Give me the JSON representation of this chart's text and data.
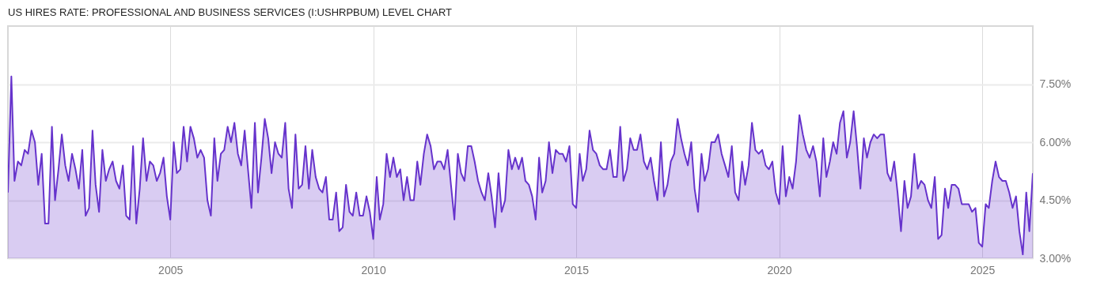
{
  "chart_data": {
    "type": "area",
    "title": "US HIRES RATE: PROFESSIONAL AND BUSINESS SERVICES (I:USHRPBUM) LEVEL CHART",
    "xlim": [
      "2001-01",
      "2026-04"
    ],
    "xticks": [
      "2005",
      "2010",
      "2015",
      "2020",
      "2025"
    ],
    "ylim": [
      3,
      9
    ],
    "yticks": [
      {
        "value": 3,
        "label": "3.00%"
      },
      {
        "value": 4.5,
        "label": "4.50%"
      },
      {
        "value": 6,
        "label": "6.00%"
      },
      {
        "value": 7.5,
        "label": "7.50%"
      }
    ],
    "grid": true,
    "x": [
      "2001-01",
      "2001-02",
      "2001-03",
      "2001-04",
      "2001-05",
      "2001-06",
      "2001-07",
      "2001-08",
      "2001-09",
      "2001-10",
      "2001-11",
      "2001-12",
      "2002-01",
      "2002-02",
      "2002-03",
      "2002-04",
      "2002-05",
      "2002-06",
      "2002-07",
      "2002-08",
      "2002-09",
      "2002-10",
      "2002-11",
      "2002-12",
      "2003-01",
      "2003-02",
      "2003-03",
      "2003-04",
      "2003-05",
      "2003-06",
      "2003-07",
      "2003-08",
      "2003-09",
      "2003-10",
      "2003-11",
      "2003-12",
      "2004-01",
      "2004-02",
      "2004-03",
      "2004-04",
      "2004-05",
      "2004-06",
      "2004-07",
      "2004-08",
      "2004-09",
      "2004-10",
      "2004-11",
      "2004-12",
      "2005-01",
      "2005-02",
      "2005-03",
      "2005-04",
      "2005-05",
      "2005-06",
      "2005-07",
      "2005-08",
      "2005-09",
      "2005-10",
      "2005-11",
      "2005-12",
      "2006-01",
      "2006-02",
      "2006-03",
      "2006-04",
      "2006-05",
      "2006-06",
      "2006-07",
      "2006-08",
      "2006-09",
      "2006-10",
      "2006-11",
      "2006-12",
      "2007-01",
      "2007-02",
      "2007-03",
      "2007-04",
      "2007-05",
      "2007-06",
      "2007-07",
      "2007-08",
      "2007-09",
      "2007-10",
      "2007-11",
      "2007-12",
      "2008-01",
      "2008-02",
      "2008-03",
      "2008-04",
      "2008-05",
      "2008-06",
      "2008-07",
      "2008-08",
      "2008-09",
      "2008-10",
      "2008-11",
      "2008-12",
      "2009-01",
      "2009-02",
      "2009-03",
      "2009-04",
      "2009-05",
      "2009-06",
      "2009-07",
      "2009-08",
      "2009-09",
      "2009-10",
      "2009-11",
      "2009-12",
      "2010-01",
      "2010-02",
      "2010-03",
      "2010-04",
      "2010-05",
      "2010-06",
      "2010-07",
      "2010-08",
      "2010-09",
      "2010-10",
      "2010-11",
      "2010-12",
      "2011-01",
      "2011-02",
      "2011-03",
      "2011-04",
      "2011-05",
      "2011-06",
      "2011-07",
      "2011-08",
      "2011-09",
      "2011-10",
      "2011-11",
      "2011-12",
      "2012-01",
      "2012-02",
      "2012-03",
      "2012-04",
      "2012-05",
      "2012-06",
      "2012-07",
      "2012-08",
      "2012-09",
      "2012-10",
      "2012-11",
      "2012-12",
      "2013-01",
      "2013-02",
      "2013-03",
      "2013-04",
      "2013-05",
      "2013-06",
      "2013-07",
      "2013-08",
      "2013-09",
      "2013-10",
      "2013-11",
      "2013-12",
      "2014-01",
      "2014-02",
      "2014-03",
      "2014-04",
      "2014-05",
      "2014-06",
      "2014-07",
      "2014-08",
      "2014-09",
      "2014-10",
      "2014-11",
      "2014-12",
      "2015-01",
      "2015-02",
      "2015-03",
      "2015-04",
      "2015-05",
      "2015-06",
      "2015-07",
      "2015-08",
      "2015-09",
      "2015-10",
      "2015-11",
      "2015-12",
      "2016-01",
      "2016-02",
      "2016-03",
      "2016-04",
      "2016-05",
      "2016-06",
      "2016-07",
      "2016-08",
      "2016-09",
      "2016-10",
      "2016-11",
      "2016-12",
      "2017-01",
      "2017-02",
      "2017-03",
      "2017-04",
      "2017-05",
      "2017-06",
      "2017-07",
      "2017-08",
      "2017-09",
      "2017-10",
      "2017-11",
      "2017-12",
      "2018-01",
      "2018-02",
      "2018-03",
      "2018-04",
      "2018-05",
      "2018-06",
      "2018-07",
      "2018-08",
      "2018-09",
      "2018-10",
      "2018-11",
      "2018-12",
      "2019-01",
      "2019-02",
      "2019-03",
      "2019-04",
      "2019-05",
      "2019-06",
      "2019-07",
      "2019-08",
      "2019-09",
      "2019-10",
      "2019-11",
      "2019-12",
      "2020-01",
      "2020-02",
      "2020-03",
      "2020-04",
      "2020-05",
      "2020-06",
      "2020-07",
      "2020-08",
      "2020-09",
      "2020-10",
      "2020-11",
      "2020-12",
      "2021-01",
      "2021-02",
      "2021-03",
      "2021-04",
      "2021-05",
      "2021-06",
      "2021-07",
      "2021-08",
      "2021-09",
      "2021-10",
      "2021-11",
      "2021-12",
      "2022-01",
      "2022-02",
      "2022-03",
      "2022-04",
      "2022-05",
      "2022-06",
      "2022-07",
      "2022-08",
      "2022-09",
      "2022-10",
      "2022-11",
      "2022-12",
      "2023-01",
      "2023-02",
      "2023-03",
      "2023-04",
      "2023-05",
      "2023-06",
      "2023-07",
      "2023-08",
      "2023-09",
      "2023-10",
      "2023-11",
      "2023-12",
      "2024-01",
      "2024-02",
      "2024-03",
      "2024-04",
      "2024-05",
      "2024-06",
      "2024-07",
      "2024-08",
      "2024-09",
      "2024-10",
      "2024-11",
      "2024-12",
      "2025-01",
      "2025-02",
      "2025-03",
      "2025-04",
      "2025-05",
      "2025-06",
      "2025-07",
      "2025-08",
      "2025-09",
      "2025-10",
      "2025-11",
      "2025-12",
      "2026-01",
      "2026-02",
      "2026-03",
      "2026-04"
    ],
    "series": [
      {
        "color": "#6633cc",
        "values": [
          4.7,
          7.7,
          5.0,
          5.5,
          5.4,
          5.8,
          5.7,
          6.3,
          6.0,
          4.9,
          5.7,
          3.9,
          3.9,
          6.4,
          4.5,
          5.3,
          6.2,
          5.4,
          5.0,
          5.7,
          5.3,
          4.8,
          5.8,
          4.1,
          4.3,
          6.3,
          4.9,
          4.2,
          5.8,
          5.0,
          5.3,
          5.5,
          5.0,
          4.8,
          5.4,
          4.1,
          4.0,
          5.9,
          3.9,
          4.8,
          6.1,
          5.0,
          5.5,
          5.4,
          5.0,
          5.2,
          5.6,
          4.6,
          4.0,
          6.0,
          5.2,
          5.3,
          6.4,
          5.5,
          6.4,
          6.1,
          5.6,
          5.8,
          5.6,
          4.5,
          4.1,
          6.1,
          5.0,
          5.7,
          5.8,
          6.4,
          6.0,
          6.5,
          5.7,
          5.4,
          6.3,
          5.3,
          4.3,
          6.5,
          4.7,
          5.6,
          6.6,
          6.1,
          5.2,
          6.0,
          5.7,
          5.6,
          6.5,
          4.8,
          4.3,
          6.2,
          4.8,
          4.9,
          5.9,
          4.8,
          5.8,
          5.1,
          4.8,
          4.7,
          5.1,
          4.0,
          4.0,
          4.7,
          3.7,
          3.8,
          4.9,
          4.2,
          4.1,
          4.7,
          4.1,
          4.1,
          4.6,
          4.2,
          3.5,
          5.1,
          4.0,
          4.4,
          5.7,
          5.1,
          5.6,
          5.1,
          5.3,
          4.5,
          5.1,
          4.5,
          4.5,
          5.5,
          4.9,
          5.7,
          6.2,
          5.9,
          5.3,
          5.5,
          5.5,
          5.3,
          5.8,
          4.9,
          4.0,
          5.7,
          5.2,
          5.0,
          5.9,
          5.9,
          5.5,
          5.0,
          4.7,
          4.5,
          5.2,
          4.6,
          3.8,
          5.2,
          4.2,
          4.5,
          5.8,
          5.3,
          5.6,
          5.3,
          5.6,
          5.0,
          4.9,
          4.6,
          4.0,
          5.6,
          4.7,
          5.0,
          6.0,
          5.2,
          5.8,
          5.7,
          5.7,
          5.5,
          5.9,
          4.4,
          4.3,
          5.7,
          5.0,
          5.3,
          6.3,
          5.8,
          5.7,
          5.4,
          5.3,
          5.3,
          5.8,
          5.1,
          5.1,
          6.4,
          5.0,
          5.3,
          6.1,
          5.8,
          5.8,
          6.2,
          5.5,
          5.3,
          5.6,
          5.0,
          4.5,
          6.0,
          4.6,
          4.9,
          5.5,
          5.7,
          6.6,
          6.1,
          5.7,
          5.4,
          6.0,
          4.8,
          4.2,
          5.7,
          5.0,
          5.3,
          6.0,
          6.0,
          6.2,
          5.7,
          5.4,
          5.1,
          5.9,
          4.7,
          4.5,
          5.5,
          4.9,
          5.4,
          6.5,
          5.8,
          5.7,
          5.8,
          5.4,
          5.3,
          5.5,
          4.7,
          4.4,
          5.9,
          4.6,
          5.1,
          4.8,
          5.5,
          6.7,
          6.2,
          5.8,
          5.6,
          5.9,
          5.5,
          4.6,
          6.1,
          5.1,
          5.5,
          6.0,
          5.7,
          6.5,
          6.8,
          5.6,
          6.0,
          6.8,
          5.9,
          4.8,
          6.1,
          5.6,
          6.0,
          6.2,
          6.1,
          6.2,
          6.2,
          5.2,
          5.0,
          5.5,
          4.7,
          3.7,
          5.0,
          4.3,
          4.6,
          5.7,
          4.8,
          5.0,
          4.9,
          4.5,
          4.3,
          5.1,
          3.5,
          3.6,
          4.8,
          4.3,
          4.9,
          4.9,
          4.8,
          4.4,
          4.4,
          4.4,
          4.2,
          4.3,
          3.4,
          3.3,
          4.4,
          4.3,
          5.0,
          5.5,
          5.1,
          5.0,
          5.0,
          4.7,
          4.3,
          4.6,
          3.7,
          3.1,
          4.7,
          3.7,
          5.2
        ]
      }
    ]
  }
}
